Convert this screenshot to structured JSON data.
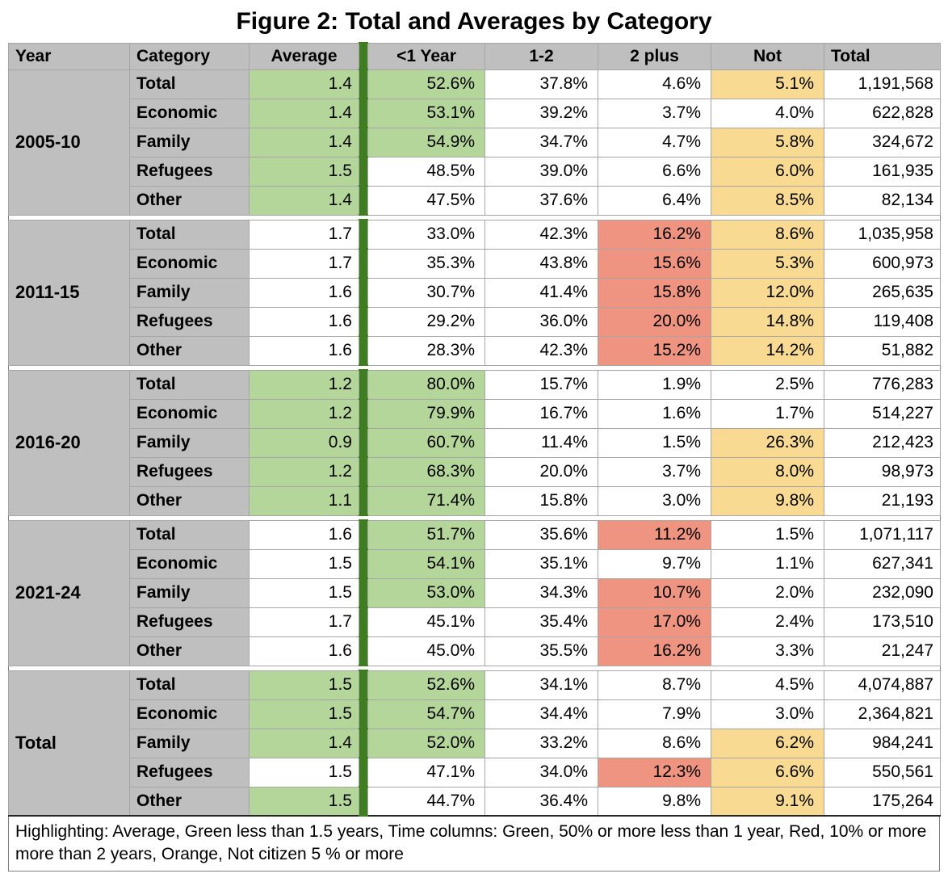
{
  "title": "Figure 2: Total and Averages by Category",
  "footnote": "Highlighting: Average, Green less than 1.5 years, Time columns: Green, 50% or more less than 1 year, Red, 10% or more more than 2 years, Orange, Not citizen 5 % or more",
  "colors": {
    "header_gray": "#bfbfbf",
    "green_fill": "#b5d69a",
    "dark_green": "#3e7d20",
    "orange_fill": "#f8da92",
    "red_fill": "#ee9480",
    "grid_line": "#a6a6a6",
    "table_border": "#7f7f7f"
  },
  "chart_data": {
    "type": "table",
    "title": "Figure 2: Total and Averages by Category",
    "columns": [
      "Year",
      "Category",
      "Average",
      "<1 Year",
      "1-2",
      "2 plus",
      "Not",
      "Total"
    ],
    "highlight_legend": {
      "green_average": "less than 1.5 years",
      "green_time": "50% or more less than 1 year",
      "red": "10% or more more than 2 years",
      "orange": "Not citizen 5 % or more"
    },
    "groups": [
      {
        "year": "2005-10",
        "rows": [
          {
            "category": "Total",
            "average": "1.4",
            "average_hl": "green",
            "under1": "52.6%",
            "under1_hl": "green",
            "one_two": "37.8%",
            "two_plus": "4.6%",
            "two_plus_hl": "",
            "not_citizen": "5.1%",
            "not_citizen_hl": "orange",
            "total": "1,191,568"
          },
          {
            "category": "Economic",
            "average": "1.4",
            "average_hl": "green",
            "under1": "53.1%",
            "under1_hl": "green",
            "one_two": "39.2%",
            "two_plus": "3.7%",
            "two_plus_hl": "",
            "not_citizen": "4.0%",
            "not_citizen_hl": "",
            "total": "622,828"
          },
          {
            "category": "Family",
            "average": "1.4",
            "average_hl": "green",
            "under1": "54.9%",
            "under1_hl": "green",
            "one_two": "34.7%",
            "two_plus": "4.7%",
            "two_plus_hl": "",
            "not_citizen": "5.8%",
            "not_citizen_hl": "orange",
            "total": "324,672"
          },
          {
            "category": "Refugees",
            "average": "1.5",
            "average_hl": "green",
            "under1": "48.5%",
            "under1_hl": "",
            "one_two": "39.0%",
            "two_plus": "6.6%",
            "two_plus_hl": "",
            "not_citizen": "6.0%",
            "not_citizen_hl": "orange",
            "total": "161,935"
          },
          {
            "category": "Other",
            "average": "1.4",
            "average_hl": "green",
            "under1": "47.5%",
            "under1_hl": "",
            "one_two": "37.6%",
            "two_plus": "6.4%",
            "two_plus_hl": "",
            "not_citizen": "8.5%",
            "not_citizen_hl": "orange",
            "total": "82,134"
          }
        ]
      },
      {
        "year": "2011-15",
        "rows": [
          {
            "category": "Total",
            "average": "1.7",
            "average_hl": "",
            "under1": "33.0%",
            "under1_hl": "",
            "one_two": "42.3%",
            "two_plus": "16.2%",
            "two_plus_hl": "red",
            "not_citizen": "8.6%",
            "not_citizen_hl": "orange",
            "total": "1,035,958"
          },
          {
            "category": "Economic",
            "average": "1.7",
            "average_hl": "",
            "under1": "35.3%",
            "under1_hl": "",
            "one_two": "43.8%",
            "two_plus": "15.6%",
            "two_plus_hl": "red",
            "not_citizen": "5.3%",
            "not_citizen_hl": "orange",
            "total": "600,973"
          },
          {
            "category": "Family",
            "average": "1.6",
            "average_hl": "",
            "under1": "30.7%",
            "under1_hl": "",
            "one_two": "41.4%",
            "two_plus": "15.8%",
            "two_plus_hl": "red",
            "not_citizen": "12.0%",
            "not_citizen_hl": "orange",
            "total": "265,635"
          },
          {
            "category": "Refugees",
            "average": "1.6",
            "average_hl": "",
            "under1": "29.2%",
            "under1_hl": "",
            "one_two": "36.0%",
            "two_plus": "20.0%",
            "two_plus_hl": "red",
            "not_citizen": "14.8%",
            "not_citizen_hl": "orange",
            "total": "119,408"
          },
          {
            "category": "Other",
            "average": "1.6",
            "average_hl": "",
            "under1": "28.3%",
            "under1_hl": "",
            "one_two": "42.3%",
            "two_plus": "15.2%",
            "two_plus_hl": "red",
            "not_citizen": "14.2%",
            "not_citizen_hl": "orange",
            "total": "51,882"
          }
        ]
      },
      {
        "year": "2016-20",
        "rows": [
          {
            "category": "Total",
            "average": "1.2",
            "average_hl": "green",
            "under1": "80.0%",
            "under1_hl": "green",
            "one_two": "15.7%",
            "two_plus": "1.9%",
            "two_plus_hl": "",
            "not_citizen": "2.5%",
            "not_citizen_hl": "",
            "total": "776,283"
          },
          {
            "category": "Economic",
            "average": "1.2",
            "average_hl": "green",
            "under1": "79.9%",
            "under1_hl": "green",
            "one_two": "16.7%",
            "two_plus": "1.6%",
            "two_plus_hl": "",
            "not_citizen": "1.7%",
            "not_citizen_hl": "",
            "total": "514,227"
          },
          {
            "category": "Family",
            "average": "0.9",
            "average_hl": "green",
            "under1": "60.7%",
            "under1_hl": "green",
            "one_two": "11.4%",
            "two_plus": "1.5%",
            "two_plus_hl": "",
            "not_citizen": "26.3%",
            "not_citizen_hl": "orange",
            "total": "212,423"
          },
          {
            "category": "Refugees",
            "average": "1.2",
            "average_hl": "green",
            "under1": "68.3%",
            "under1_hl": "green",
            "one_two": "20.0%",
            "two_plus": "3.7%",
            "two_plus_hl": "",
            "not_citizen": "8.0%",
            "not_citizen_hl": "orange",
            "total": "98,973"
          },
          {
            "category": "Other",
            "average": "1.1",
            "average_hl": "green",
            "under1": "71.4%",
            "under1_hl": "green",
            "one_two": "15.8%",
            "two_plus": "3.0%",
            "two_plus_hl": "",
            "not_citizen": "9.8%",
            "not_citizen_hl": "orange",
            "total": "21,193"
          }
        ]
      },
      {
        "year": "2021-24",
        "rows": [
          {
            "category": "Total",
            "average": "1.6",
            "average_hl": "",
            "under1": "51.7%",
            "under1_hl": "green",
            "one_two": "35.6%",
            "two_plus": "11.2%",
            "two_plus_hl": "red",
            "not_citizen": "1.5%",
            "not_citizen_hl": "",
            "total": "1,071,117"
          },
          {
            "category": "Economic",
            "average": "1.5",
            "average_hl": "",
            "under1": "54.1%",
            "under1_hl": "green",
            "one_two": "35.1%",
            "two_plus": "9.7%",
            "two_plus_hl": "",
            "not_citizen": "1.1%",
            "not_citizen_hl": "",
            "total": "627,341"
          },
          {
            "category": "Family",
            "average": "1.5",
            "average_hl": "",
            "under1": "53.0%",
            "under1_hl": "green",
            "one_two": "34.3%",
            "two_plus": "10.7%",
            "two_plus_hl": "red",
            "not_citizen": "2.0%",
            "not_citizen_hl": "",
            "total": "232,090"
          },
          {
            "category": "Refugees",
            "average": "1.7",
            "average_hl": "",
            "under1": "45.1%",
            "under1_hl": "",
            "one_two": "35.4%",
            "two_plus": "17.0%",
            "two_plus_hl": "red",
            "not_citizen": "2.4%",
            "not_citizen_hl": "",
            "total": "173,510"
          },
          {
            "category": "Other",
            "average": "1.6",
            "average_hl": "",
            "under1": "45.0%",
            "under1_hl": "",
            "one_two": "35.5%",
            "two_plus": "16.2%",
            "two_plus_hl": "red",
            "not_citizen": "3.3%",
            "not_citizen_hl": "",
            "total": "21,247"
          }
        ]
      },
      {
        "year": "Total",
        "rows": [
          {
            "category": "Total",
            "average": "1.5",
            "average_hl": "green",
            "under1": "52.6%",
            "under1_hl": "green",
            "one_two": "34.1%",
            "two_plus": "8.7%",
            "two_plus_hl": "",
            "not_citizen": "4.5%",
            "not_citizen_hl": "",
            "total": "4,074,887"
          },
          {
            "category": "Economic",
            "average": "1.5",
            "average_hl": "green",
            "under1": "54.7%",
            "under1_hl": "green",
            "one_two": "34.4%",
            "two_plus": "7.9%",
            "two_plus_hl": "",
            "not_citizen": "3.0%",
            "not_citizen_hl": "",
            "total": "2,364,821"
          },
          {
            "category": "Family",
            "average": "1.4",
            "average_hl": "green",
            "under1": "52.0%",
            "under1_hl": "green",
            "one_two": "33.2%",
            "two_plus": "8.6%",
            "two_plus_hl": "",
            "not_citizen": "6.2%",
            "not_citizen_hl": "orange",
            "total": "984,241"
          },
          {
            "category": "Refugees",
            "average": "1.5",
            "average_hl": "",
            "under1": "47.1%",
            "under1_hl": "",
            "one_two": "34.0%",
            "two_plus": "12.3%",
            "two_plus_hl": "red",
            "not_citizen": "6.6%",
            "not_citizen_hl": "orange",
            "total": "550,561"
          },
          {
            "category": "Other",
            "average": "1.5",
            "average_hl": "green",
            "under1": "44.7%",
            "under1_hl": "",
            "one_two": "36.4%",
            "two_plus": "9.8%",
            "two_plus_hl": "",
            "not_citizen": "9.1%",
            "not_citizen_hl": "orange",
            "total": "175,264"
          }
        ]
      }
    ]
  }
}
